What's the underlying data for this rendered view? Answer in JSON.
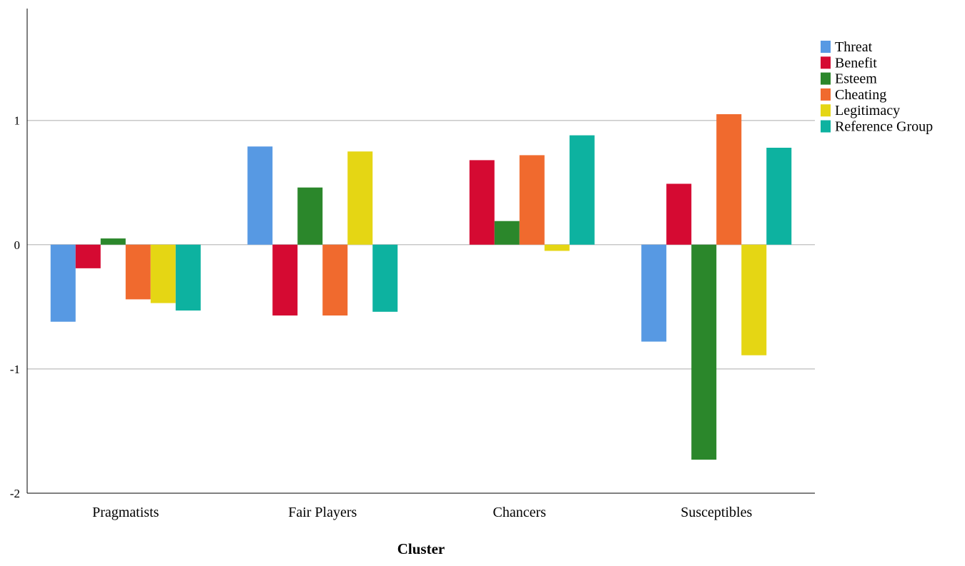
{
  "chart_data": {
    "type": "bar",
    "title": "",
    "xlabel": "Cluster",
    "ylabel": "",
    "ylim": [
      -2,
      1.9
    ],
    "yticks": [
      1,
      0,
      -1,
      -2
    ],
    "grid": true,
    "legend_position": "top-right",
    "categories": [
      "Pragmatists",
      "Fair Players",
      "Chancers",
      "Susceptibles"
    ],
    "series": [
      {
        "name": "Threat",
        "color": "#5799E3",
        "values": [
          -0.62,
          0.79,
          0.0,
          -0.78
        ]
      },
      {
        "name": "Benefit",
        "color": "#D50A32",
        "values": [
          -0.19,
          -0.57,
          0.68,
          0.49
        ]
      },
      {
        "name": "Esteem",
        "color": "#2B872B",
        "values": [
          0.05,
          0.46,
          0.19,
          -1.73
        ]
      },
      {
        "name": "Cheating",
        "color": "#F06A2E",
        "values": [
          -0.44,
          -0.57,
          0.72,
          1.05
        ]
      },
      {
        "name": "Legitimacy",
        "color": "#E5D614",
        "values": [
          -0.47,
          0.75,
          -0.05,
          -0.89
        ]
      },
      {
        "name": "Reference Group",
        "color": "#0DB2A0",
        "values": [
          -0.53,
          -0.54,
          0.88,
          0.78
        ]
      }
    ]
  }
}
